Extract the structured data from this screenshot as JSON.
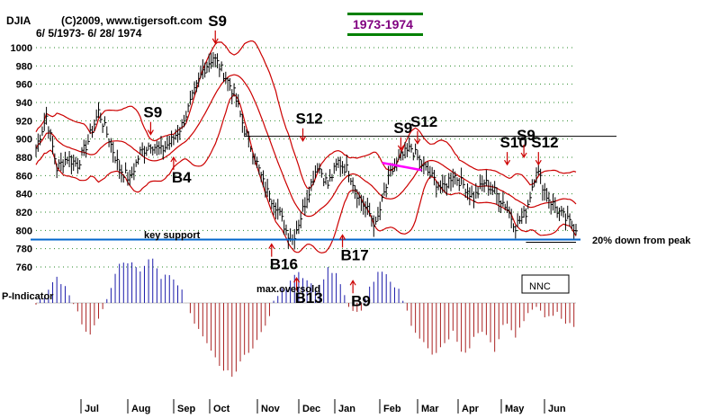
{
  "header": {
    "symbol": "DJIA",
    "copyright": "(C)2009, www.tigersoft.com",
    "date_range": "6/ 5/1973- 6/ 28/ 1974",
    "period_badge": "1973-1974"
  },
  "colors": {
    "price_bar": "#000000",
    "band": "#cc0000",
    "support_line": "#0066cc",
    "pos_indicator": "#1a1aaa",
    "neg_indicator": "#aa2222",
    "key_support_label": "#ff00ff",
    "badge_text": "#800080",
    "badge_rule": "#008000"
  },
  "chart_data": {
    "type": "ohlc",
    "y_ticks": [
      760,
      780,
      800,
      820,
      840,
      860,
      880,
      900,
      920,
      940,
      960,
      980,
      1000
    ],
    "ylim": [
      750,
      1015
    ],
    "grid": true,
    "months": [
      "Jul",
      "Aug",
      "Sep",
      "Oct",
      "Nov",
      "Dec",
      "Jan",
      "Feb",
      "Mar",
      "Apr",
      "May",
      "Jun"
    ],
    "price_anchors": [
      [
        0,
        890
      ],
      [
        5,
        925
      ],
      [
        10,
        868
      ],
      [
        15,
        880
      ],
      [
        20,
        872
      ],
      [
        25,
        898
      ],
      [
        30,
        930
      ],
      [
        35,
        900
      ],
      [
        40,
        868
      ],
      [
        45,
        856
      ],
      [
        50,
        885
      ],
      [
        55,
        895
      ],
      [
        60,
        887
      ],
      [
        65,
        898
      ],
      [
        70,
        915
      ],
      [
        75,
        945
      ],
      [
        80,
        975
      ],
      [
        85,
        990
      ],
      [
        90,
        972
      ],
      [
        95,
        950
      ],
      [
        100,
        910
      ],
      [
        105,
        880
      ],
      [
        110,
        845
      ],
      [
        115,
        828
      ],
      [
        120,
        800
      ],
      [
        123,
        790
      ],
      [
        127,
        815
      ],
      [
        130,
        838
      ],
      [
        135,
        872
      ],
      [
        140,
        850
      ],
      [
        145,
        875
      ],
      [
        150,
        865
      ],
      [
        155,
        835
      ],
      [
        160,
        818
      ],
      [
        163,
        805
      ],
      [
        167,
        840
      ],
      [
        170,
        862
      ],
      [
        175,
        880
      ],
      [
        180,
        890
      ],
      [
        185,
        872
      ],
      [
        190,
        858
      ],
      [
        195,
        845
      ],
      [
        200,
        862
      ],
      [
        205,
        850
      ],
      [
        210,
        835
      ],
      [
        215,
        853
      ],
      [
        220,
        842
      ],
      [
        225,
        828
      ],
      [
        230,
        805
      ],
      [
        235,
        820
      ],
      [
        240,
        868
      ],
      [
        245,
        838
      ],
      [
        250,
        822
      ],
      [
        255,
        810
      ],
      [
        259,
        803
      ]
    ],
    "indicator_anchors": [
      [
        0,
        -2
      ],
      [
        5,
        8
      ],
      [
        10,
        22
      ],
      [
        15,
        12
      ],
      [
        20,
        -8
      ],
      [
        25,
        -30
      ],
      [
        30,
        -15
      ],
      [
        35,
        10
      ],
      [
        40,
        32
      ],
      [
        45,
        35
      ],
      [
        50,
        28
      ],
      [
        55,
        40
      ],
      [
        60,
        22
      ],
      [
        65,
        25
      ],
      [
        70,
        10
      ],
      [
        75,
        -15
      ],
      [
        80,
        -30
      ],
      [
        85,
        -45
      ],
      [
        90,
        -58
      ],
      [
        95,
        -62
      ],
      [
        100,
        -45
      ],
      [
        105,
        -35
      ],
      [
        110,
        -20
      ],
      [
        115,
        5
      ],
      [
        120,
        15
      ],
      [
        125,
        28
      ],
      [
        130,
        20
      ],
      [
        135,
        10
      ],
      [
        140,
        30
      ],
      [
        145,
        22
      ],
      [
        150,
        -5
      ],
      [
        155,
        -10
      ],
      [
        160,
        12
      ],
      [
        165,
        28
      ],
      [
        170,
        20
      ],
      [
        175,
        8
      ],
      [
        180,
        -18
      ],
      [
        185,
        -32
      ],
      [
        190,
        -45
      ],
      [
        195,
        -38
      ],
      [
        200,
        -25
      ],
      [
        205,
        -48
      ],
      [
        210,
        -30
      ],
      [
        215,
        -22
      ],
      [
        220,
        -42
      ],
      [
        225,
        -15
      ],
      [
        230,
        -28
      ],
      [
        235,
        -10
      ],
      [
        240,
        -5
      ],
      [
        245,
        -12
      ],
      [
        250,
        -8
      ],
      [
        255,
        -18
      ],
      [
        259,
        -20
      ]
    ],
    "key_support_level": 790,
    "resistance_level": 903,
    "resistance_days": [
      100,
      255
    ],
    "down_20_level": 787,
    "signals": [
      {
        "label": "S9",
        "day": 86,
        "price": 1005,
        "above": true
      },
      {
        "label": "S9",
        "day": 55,
        "price": 905,
        "above": true
      },
      {
        "label": "S12",
        "day": 128,
        "price": 898,
        "above": true
      },
      {
        "label": "S9",
        "day": 175,
        "price": 888,
        "above": true
      },
      {
        "label": "S12",
        "day": 183,
        "price": 895,
        "above": true
      },
      {
        "label": "S10",
        "day": 226,
        "price": 872,
        "above": true
      },
      {
        "label": "S9",
        "day": 234,
        "price": 880,
        "above": true
      },
      {
        "label": "S12",
        "day": 241,
        "price": 872,
        "above": true
      },
      {
        "label": "B4",
        "day": 66,
        "price": 880,
        "above": false
      },
      {
        "label": "B16",
        "day": 113,
        "price": 785,
        "above": false
      },
      {
        "label": "B17",
        "day": 147,
        "price": 795,
        "above": false
      },
      {
        "label": "B13",
        "day": 125,
        "price": 748,
        "above": false
      },
      {
        "label": "B9",
        "day": 152,
        "price": 745,
        "above": false
      }
    ],
    "annotations": {
      "key_support": "key support",
      "down_from_peak": "20% down from peak",
      "max_oversold": "max.oversold",
      "indicator_name": "P-Indicator",
      "nnc_box": "NNC"
    }
  }
}
